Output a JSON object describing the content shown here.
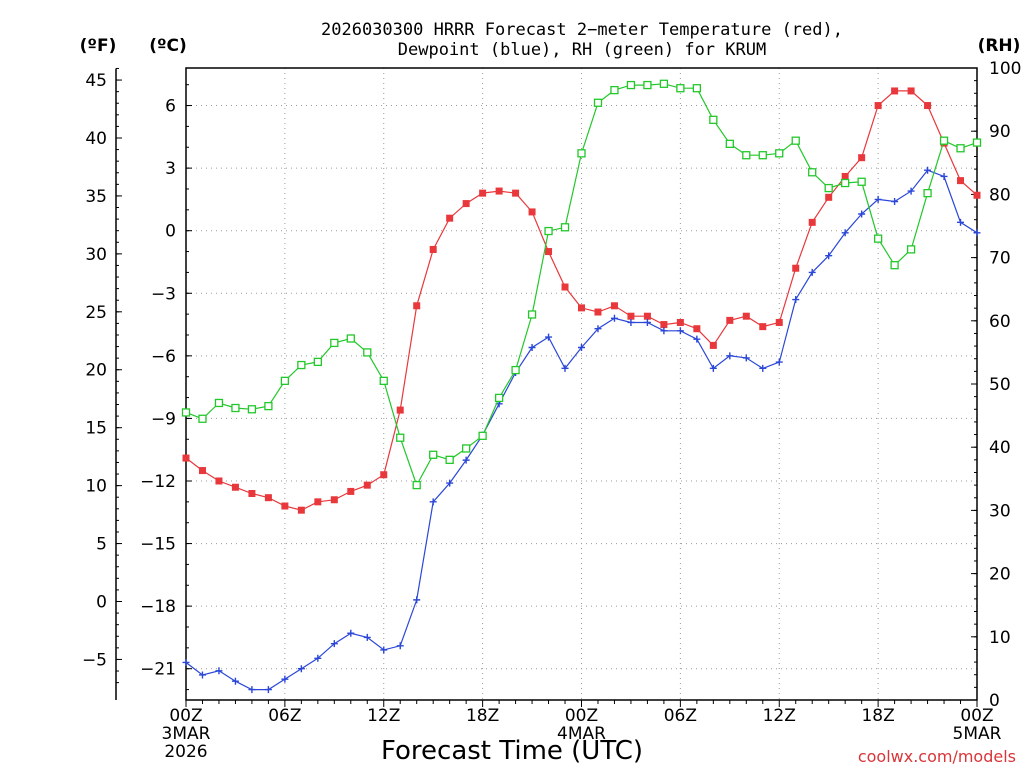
{
  "chart_data": {
    "type": "line",
    "title": "2026030300 HRRR Forecast 2-meter Temperature (red), Dewpoint (blue), RH (green) for KRUM",
    "title_lines": [
      "2026030300 HRRR Forecast 2−meter Temperature (red),",
      "Dewpoint (blue), RH (green) for KRUM"
    ],
    "xlabel": "Forecast Time (UTC)",
    "credit": "coolwx.com/models",
    "units": {
      "fahrenheit": "(ºF)",
      "celsius": "(ºC)",
      "rh": "(RH)"
    },
    "x": [
      0,
      1,
      2,
      3,
      4,
      5,
      6,
      7,
      8,
      9,
      10,
      11,
      12,
      13,
      14,
      15,
      16,
      17,
      18,
      19,
      20,
      21,
      22,
      23,
      24,
      25,
      26,
      27,
      28,
      29,
      30,
      31,
      32,
      33,
      34,
      35,
      36,
      37,
      38,
      39,
      40,
      41,
      42,
      43,
      44,
      45,
      46,
      47,
      48
    ],
    "x_unit": "forecast hour from 2026-03-03 00Z",
    "xlim": [
      0,
      48
    ],
    "x_ticks": [
      {
        "x": 0,
        "lines": [
          "00Z",
          "3MAR",
          "2026"
        ]
      },
      {
        "x": 6,
        "lines": [
          "06Z"
        ]
      },
      {
        "x": 12,
        "lines": [
          "12Z"
        ]
      },
      {
        "x": 18,
        "lines": [
          "18Z"
        ]
      },
      {
        "x": 24,
        "lines": [
          "00Z",
          "4MAR"
        ]
      },
      {
        "x": 30,
        "lines": [
          "06Z"
        ]
      },
      {
        "x": 36,
        "lines": [
          "12Z"
        ]
      },
      {
        "x": 42,
        "lines": [
          "18Z"
        ]
      },
      {
        "x": 48,
        "lines": [
          "00Z",
          "5MAR"
        ]
      }
    ],
    "y_left_celsius": {
      "lim": [
        -22.5,
        7.8
      ],
      "ticks": [
        -21,
        -18,
        -15,
        -12,
        -9,
        -6,
        -3,
        0,
        3,
        6
      ],
      "tick_labels": [
        "−21",
        "−18",
        "−15",
        "−12",
        "−9",
        "−6",
        "−3",
        "0",
        "3",
        "6"
      ]
    },
    "y_left_fahrenheit": {
      "ticks": [
        -5,
        0,
        5,
        10,
        15,
        20,
        25,
        30,
        35,
        40,
        45
      ],
      "tick_labels": [
        "−5",
        "0",
        "5",
        "10",
        "15",
        "20",
        "25",
        "30",
        "35",
        "40",
        "45"
      ]
    },
    "y_right_rh": {
      "lim": [
        0,
        100
      ],
      "ticks": [
        0,
        10,
        20,
        30,
        40,
        50,
        60,
        70,
        80,
        90,
        100
      ]
    },
    "grid": true,
    "series": [
      {
        "name": "Temperature (red)",
        "axis": "celsius",
        "color": "#e8383c",
        "marker": "filled-square",
        "values": [
          -10.9,
          -11.5,
          -12.0,
          -12.3,
          -12.6,
          -12.8,
          -13.2,
          -13.4,
          -13.0,
          -12.9,
          -12.5,
          -12.2,
          -11.7,
          -8.6,
          -3.6,
          -0.9,
          0.6,
          1.3,
          1.8,
          1.9,
          1.8,
          0.9,
          -1.0,
          -2.7,
          -3.7,
          -3.9,
          -3.6,
          -4.1,
          -4.1,
          -4.5,
          -4.4,
          -4.7,
          -5.5,
          -4.3,
          -4.1,
          -4.6,
          -4.4,
          -1.8,
          0.4,
          1.6,
          2.6,
          3.5,
          6.0,
          6.7,
          6.7,
          6.0,
          4.2,
          2.4,
          1.7
        ]
      },
      {
        "name": "Dewpoint (blue)",
        "axis": "celsius",
        "color": "#2a47d8",
        "marker": "plus",
        "values": [
          -20.7,
          -21.3,
          -21.1,
          -21.6,
          -22.0,
          -22.0,
          -21.5,
          -21.0,
          -20.5,
          -19.8,
          -19.3,
          -19.5,
          -20.1,
          -19.9,
          -17.7,
          -13.0,
          -12.1,
          -11.0,
          -9.8,
          -8.3,
          -6.8,
          -5.6,
          -5.1,
          -6.6,
          -5.6,
          -4.7,
          -4.2,
          -4.4,
          -4.4,
          -4.8,
          -4.8,
          -5.2,
          -6.6,
          -6.0,
          -6.1,
          -6.6,
          -6.3,
          -3.3,
          -2.0,
          -1.2,
          -0.1,
          0.8,
          1.5,
          1.4,
          1.9,
          2.9,
          2.6,
          0.4,
          -0.1
        ]
      },
      {
        "name": "RH (green)",
        "axis": "rh",
        "color": "#22c82a",
        "marker": "open-square",
        "values": [
          45.5,
          44.5,
          47.0,
          46.2,
          46.0,
          46.5,
          50.5,
          53.0,
          53.5,
          56.5,
          57.2,
          55.0,
          50.5,
          41.5,
          34.0,
          38.8,
          38.0,
          39.8,
          41.8,
          47.8,
          52.2,
          61.0,
          74.2,
          74.8,
          86.5,
          94.5,
          96.5,
          97.3,
          97.3,
          97.5,
          96.8,
          96.8,
          91.8,
          88.0,
          86.2,
          86.2,
          86.5,
          88.5,
          83.5,
          81.0,
          81.8,
          82.0,
          73.0,
          68.8,
          71.3,
          80.2,
          88.5,
          87.3,
          88.2
        ]
      }
    ]
  }
}
